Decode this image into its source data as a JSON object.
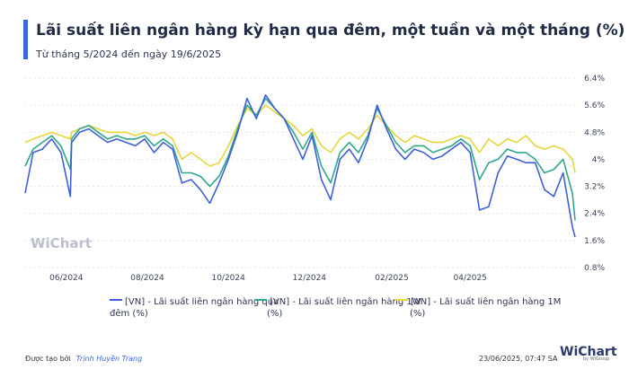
{
  "header": {
    "title": "Lãi suất liên ngân hàng kỳ hạn qua đêm, một tuần và một tháng (%)",
    "subtitle": "Từ tháng 5/2024 đến ngày 19/6/2025"
  },
  "footer": {
    "created_by": "Được tạo bởi",
    "author": "Trịnh Huyền Trang",
    "timestamp": "23/06/2025, 07:47 SA",
    "logo_text": "WiChart",
    "logo_sub": "by WiGroup"
  },
  "watermark": "WiChart",
  "colors": {
    "overnight": "#3f5fd9",
    "one_week": "#2ea88a",
    "one_month": "#e6d63a",
    "accent": "#3a63e0"
  },
  "chart_data": {
    "type": "line",
    "title": "Lãi suất liên ngân hàng kỳ hạn qua đêm, một tuần và một tháng (%)",
    "x_range": [
      "2024-05-01",
      "2025-06-19"
    ],
    "x_ticks": [
      "06/2024",
      "08/2024",
      "10/2024",
      "12/2024",
      "02/2025",
      "04/2025"
    ],
    "y_ticks": [
      "6.4%",
      "5.6%",
      "4.8%",
      "4%",
      "3.2%",
      "2.4%",
      "1.6%",
      "0.8%"
    ],
    "ylim": [
      0.8,
      6.4
    ],
    "grid": true,
    "legend_position": "bottom",
    "series": [
      {
        "name": "[VN] - Lãi suất liên ngân hàng qua đêm (%)",
        "color": "#3f5fd9",
        "points": [
          [
            "2024-05-01",
            3.0
          ],
          [
            "2024-05-07",
            4.2
          ],
          [
            "2024-05-14",
            4.3
          ],
          [
            "2024-05-21",
            4.6
          ],
          [
            "2024-05-28",
            4.2
          ],
          [
            "2024-06-04",
            2.9
          ],
          [
            "2024-06-05",
            4.5
          ],
          [
            "2024-06-11",
            4.8
          ],
          [
            "2024-06-18",
            4.9
          ],
          [
            "2024-06-25",
            4.7
          ],
          [
            "2024-07-02",
            4.5
          ],
          [
            "2024-07-09",
            4.6
          ],
          [
            "2024-07-16",
            4.5
          ],
          [
            "2024-07-23",
            4.4
          ],
          [
            "2024-07-30",
            4.6
          ],
          [
            "2024-08-06",
            4.2
          ],
          [
            "2024-08-13",
            4.5
          ],
          [
            "2024-08-20",
            4.3
          ],
          [
            "2024-08-27",
            3.3
          ],
          [
            "2024-09-03",
            3.4
          ],
          [
            "2024-09-10",
            3.1
          ],
          [
            "2024-09-17",
            2.7
          ],
          [
            "2024-09-24",
            3.3
          ],
          [
            "2024-10-01",
            4.0
          ],
          [
            "2024-10-08",
            4.8
          ],
          [
            "2024-10-15",
            5.8
          ],
          [
            "2024-10-22",
            5.2
          ],
          [
            "2024-10-29",
            5.9
          ],
          [
            "2024-11-05",
            5.5
          ],
          [
            "2024-11-12",
            5.2
          ],
          [
            "2024-11-19",
            4.6
          ],
          [
            "2024-11-26",
            4.0
          ],
          [
            "2024-12-03",
            4.7
          ],
          [
            "2024-12-10",
            3.4
          ],
          [
            "2024-12-17",
            2.8
          ],
          [
            "2024-12-24",
            4.0
          ],
          [
            "2024-12-31",
            4.3
          ],
          [
            "2025-01-07",
            3.9
          ],
          [
            "2025-01-14",
            4.6
          ],
          [
            "2025-01-21",
            5.6
          ],
          [
            "2025-01-28",
            4.9
          ],
          [
            "2025-02-04",
            4.3
          ],
          [
            "2025-02-11",
            4.0
          ],
          [
            "2025-02-18",
            4.3
          ],
          [
            "2025-02-25",
            4.2
          ],
          [
            "2025-03-04",
            4.0
          ],
          [
            "2025-03-11",
            4.1
          ],
          [
            "2025-03-18",
            4.3
          ],
          [
            "2025-03-25",
            4.5
          ],
          [
            "2025-04-01",
            4.2
          ],
          [
            "2025-04-08",
            2.5
          ],
          [
            "2025-04-15",
            2.6
          ],
          [
            "2025-04-22",
            3.6
          ],
          [
            "2025-04-29",
            4.1
          ],
          [
            "2025-05-06",
            4.0
          ],
          [
            "2025-05-13",
            3.9
          ],
          [
            "2025-05-20",
            3.9
          ],
          [
            "2025-05-27",
            3.1
          ],
          [
            "2025-06-03",
            2.9
          ],
          [
            "2025-06-10",
            3.6
          ],
          [
            "2025-06-17",
            2.0
          ],
          [
            "2025-06-19",
            1.7
          ]
        ]
      },
      {
        "name": "[VN] - Lãi suất liên ngân hàng 1W (%)",
        "color": "#2ea88a",
        "points": [
          [
            "2024-05-01",
            3.8
          ],
          [
            "2024-05-07",
            4.3
          ],
          [
            "2024-05-14",
            4.5
          ],
          [
            "2024-05-21",
            4.7
          ],
          [
            "2024-05-28",
            4.4
          ],
          [
            "2024-06-04",
            3.7
          ],
          [
            "2024-06-05",
            4.6
          ],
          [
            "2024-06-11",
            4.9
          ],
          [
            "2024-06-18",
            5.0
          ],
          [
            "2024-06-25",
            4.8
          ],
          [
            "2024-07-02",
            4.6
          ],
          [
            "2024-07-09",
            4.7
          ],
          [
            "2024-07-16",
            4.6
          ],
          [
            "2024-07-23",
            4.6
          ],
          [
            "2024-07-30",
            4.7
          ],
          [
            "2024-08-06",
            4.4
          ],
          [
            "2024-08-13",
            4.6
          ],
          [
            "2024-08-20",
            4.4
          ],
          [
            "2024-08-27",
            3.6
          ],
          [
            "2024-09-03",
            3.6
          ],
          [
            "2024-09-10",
            3.5
          ],
          [
            "2024-09-17",
            3.2
          ],
          [
            "2024-09-24",
            3.5
          ],
          [
            "2024-10-01",
            4.1
          ],
          [
            "2024-10-08",
            4.9
          ],
          [
            "2024-10-15",
            5.6
          ],
          [
            "2024-10-22",
            5.3
          ],
          [
            "2024-10-29",
            5.8
          ],
          [
            "2024-11-05",
            5.5
          ],
          [
            "2024-11-12",
            5.2
          ],
          [
            "2024-11-19",
            4.8
          ],
          [
            "2024-11-26",
            4.3
          ],
          [
            "2024-12-03",
            4.8
          ],
          [
            "2024-12-10",
            3.8
          ],
          [
            "2024-12-17",
            3.3
          ],
          [
            "2024-12-24",
            4.2
          ],
          [
            "2024-12-31",
            4.5
          ],
          [
            "2025-01-07",
            4.2
          ],
          [
            "2025-01-14",
            4.7
          ],
          [
            "2025-01-21",
            5.5
          ],
          [
            "2025-01-28",
            5.0
          ],
          [
            "2025-02-04",
            4.5
          ],
          [
            "2025-02-11",
            4.2
          ],
          [
            "2025-02-18",
            4.4
          ],
          [
            "2025-02-25",
            4.4
          ],
          [
            "2025-03-04",
            4.2
          ],
          [
            "2025-03-11",
            4.3
          ],
          [
            "2025-03-18",
            4.4
          ],
          [
            "2025-03-25",
            4.6
          ],
          [
            "2025-04-01",
            4.4
          ],
          [
            "2025-04-08",
            3.4
          ],
          [
            "2025-04-15",
            3.9
          ],
          [
            "2025-04-22",
            4.0
          ],
          [
            "2025-04-29",
            4.3
          ],
          [
            "2025-05-06",
            4.2
          ],
          [
            "2025-05-13",
            4.2
          ],
          [
            "2025-05-20",
            4.0
          ],
          [
            "2025-05-27",
            3.6
          ],
          [
            "2025-06-03",
            3.7
          ],
          [
            "2025-06-10",
            4.0
          ],
          [
            "2025-06-17",
            3.0
          ],
          [
            "2025-06-19",
            2.2
          ]
        ]
      },
      {
        "name": "[VN] - Lãi suất liên ngân hàng 1M (%)",
        "color": "#e6d63a",
        "points": [
          [
            "2024-05-01",
            4.5
          ],
          [
            "2024-05-07",
            4.6
          ],
          [
            "2024-05-14",
            4.7
          ],
          [
            "2024-05-21",
            4.8
          ],
          [
            "2024-05-28",
            4.7
          ],
          [
            "2024-06-04",
            4.6
          ],
          [
            "2024-06-05",
            4.8
          ],
          [
            "2024-06-11",
            4.9
          ],
          [
            "2024-06-18",
            5.0
          ],
          [
            "2024-06-25",
            4.9
          ],
          [
            "2024-07-02",
            4.8
          ],
          [
            "2024-07-09",
            4.8
          ],
          [
            "2024-07-16",
            4.8
          ],
          [
            "2024-07-23",
            4.7
          ],
          [
            "2024-07-30",
            4.8
          ],
          [
            "2024-08-06",
            4.7
          ],
          [
            "2024-08-13",
            4.8
          ],
          [
            "2024-08-20",
            4.6
          ],
          [
            "2024-08-27",
            4.0
          ],
          [
            "2024-09-03",
            4.2
          ],
          [
            "2024-09-10",
            4.0
          ],
          [
            "2024-09-17",
            3.8
          ],
          [
            "2024-09-24",
            3.9
          ],
          [
            "2024-10-01",
            4.4
          ],
          [
            "2024-10-08",
            5.0
          ],
          [
            "2024-10-15",
            5.5
          ],
          [
            "2024-10-22",
            5.3
          ],
          [
            "2024-10-29",
            5.6
          ],
          [
            "2024-11-05",
            5.4
          ],
          [
            "2024-11-12",
            5.2
          ],
          [
            "2024-11-19",
            5.0
          ],
          [
            "2024-11-26",
            4.7
          ],
          [
            "2024-12-03",
            4.9
          ],
          [
            "2024-12-10",
            4.4
          ],
          [
            "2024-12-17",
            4.2
          ],
          [
            "2024-12-24",
            4.6
          ],
          [
            "2024-12-31",
            4.8
          ],
          [
            "2025-01-07",
            4.6
          ],
          [
            "2025-01-14",
            4.9
          ],
          [
            "2025-01-21",
            5.3
          ],
          [
            "2025-01-28",
            5.0
          ],
          [
            "2025-02-04",
            4.7
          ],
          [
            "2025-02-11",
            4.5
          ],
          [
            "2025-02-18",
            4.7
          ],
          [
            "2025-02-25",
            4.6
          ],
          [
            "2025-03-04",
            4.5
          ],
          [
            "2025-03-11",
            4.5
          ],
          [
            "2025-03-18",
            4.6
          ],
          [
            "2025-03-25",
            4.7
          ],
          [
            "2025-04-01",
            4.6
          ],
          [
            "2025-04-08",
            4.2
          ],
          [
            "2025-04-15",
            4.6
          ],
          [
            "2025-04-22",
            4.4
          ],
          [
            "2025-04-29",
            4.6
          ],
          [
            "2025-05-06",
            4.5
          ],
          [
            "2025-05-13",
            4.7
          ],
          [
            "2025-05-20",
            4.4
          ],
          [
            "2025-05-27",
            4.3
          ],
          [
            "2025-06-03",
            4.4
          ],
          [
            "2025-06-10",
            4.3
          ],
          [
            "2025-06-17",
            4.0
          ],
          [
            "2025-06-19",
            3.6
          ]
        ]
      }
    ]
  },
  "legend": [
    {
      "line1": "[VN] - Lãi suất liên ngân hàng qua",
      "line2": "đêm (%)",
      "color": "#3f5fd9"
    },
    {
      "line1": "[VN] - Lãi suất liên ngân hàng 1W",
      "line2": "(%)",
      "color": "#2ea88a"
    },
    {
      "line1": "[VN] - Lãi suất liên ngân hàng 1M",
      "line2": "(%)",
      "color": "#e6d63a"
    }
  ]
}
